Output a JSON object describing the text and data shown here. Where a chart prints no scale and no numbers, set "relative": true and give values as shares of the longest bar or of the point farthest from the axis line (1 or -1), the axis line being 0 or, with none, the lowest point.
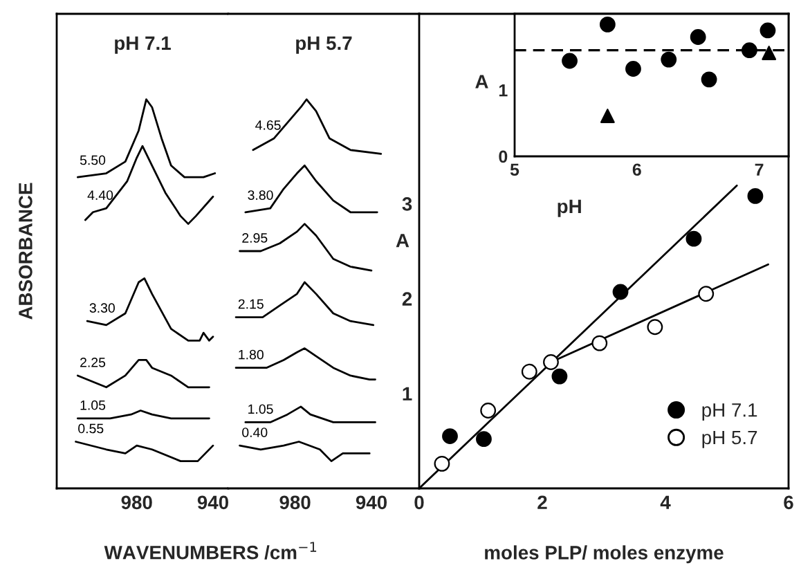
{
  "chart_data": [
    {
      "type": "line",
      "title": "pH 7.1",
      "xlabel": "WAVENUMBERS /cm$^{−1}$",
      "ylabel": "ABSORBANCE",
      "relative": true,
      "xlim": [
        1022,
        932
      ],
      "xticks": [
        980,
        940
      ],
      "tick_labels": "x",
      "series": [
        {
          "name": "5.50",
          "color": "#000000",
          "x": [
            1011,
            996,
            986,
            979,
            975,
            972,
            967,
            962,
            955,
            945,
            939
          ],
          "values": [
            0.8,
            0.81,
            0.84,
            0.92,
            1.0,
            0.98,
            0.9,
            0.83,
            0.8,
            0.8,
            0.81
          ]
        },
        {
          "name": "4.40",
          "color": "#000000",
          "x": [
            1007,
            1003,
            996,
            985,
            980,
            977,
            972,
            965,
            957,
            953,
            949,
            940
          ],
          "values": [
            0.69,
            0.71,
            0.72,
            0.79,
            0.85,
            0.88,
            0.83,
            0.76,
            0.7,
            0.68,
            0.7,
            0.75
          ]
        },
        {
          "name": "3.30",
          "color": "#000000",
          "x": [
            1006,
            996,
            986,
            979,
            976,
            972,
            962,
            953,
            947,
            945,
            942,
            940
          ],
          "values": [
            0.43,
            0.42,
            0.45,
            0.53,
            0.54,
            0.5,
            0.41,
            0.38,
            0.38,
            0.4,
            0.38,
            0.39
          ]
        },
        {
          "name": "2.25",
          "color": "#000000",
          "x": [
            1011,
            996,
            986,
            979,
            975,
            972,
            962,
            953,
            942
          ],
          "values": [
            0.29,
            0.26,
            0.29,
            0.33,
            0.33,
            0.31,
            0.29,
            0.26,
            0.26
          ]
        },
        {
          "name": "1.05",
          "color": "#000000",
          "x": [
            1011,
            994,
            983,
            978,
            972,
            962,
            948,
            942
          ],
          "values": [
            0.18,
            0.18,
            0.19,
            0.2,
            0.19,
            0.18,
            0.18,
            0.18
          ]
        },
        {
          "name": "0.55",
          "color": "#000000",
          "x": [
            1012,
            996,
            986,
            980,
            972,
            957,
            948,
            944,
            940
          ],
          "values": [
            0.12,
            0.1,
            0.09,
            0.11,
            0.1,
            0.07,
            0.07,
            0.09,
            0.11
          ]
        }
      ]
    },
    {
      "type": "line",
      "title": "pH 5.7",
      "relative": true,
      "xlim": [
        1015,
        915
      ],
      "xticks": [
        980,
        940
      ],
      "tick_labels": "x",
      "series": [
        {
          "name": "4.65",
          "color": "#000000",
          "x": [
            1002,
            991,
            984,
            977,
            974,
            969,
            962,
            951,
            935
          ],
          "values": [
            0.87,
            0.9,
            0.94,
            0.98,
            1.0,
            0.97,
            0.9,
            0.87,
            0.86
          ]
        },
        {
          "name": "3.80",
          "color": "#000000",
          "x": [
            1006,
            993,
            986,
            979,
            975,
            969,
            960,
            951,
            937
          ],
          "values": [
            0.71,
            0.72,
            0.77,
            0.81,
            0.83,
            0.79,
            0.74,
            0.71,
            0.71
          ]
        },
        {
          "name": "2.95",
          "color": "#000000",
          "x": [
            1009,
            998,
            988,
            979,
            975,
            969,
            960,
            951,
            940
          ],
          "values": [
            0.61,
            0.61,
            0.63,
            0.66,
            0.68,
            0.65,
            0.59,
            0.57,
            0.56
          ]
        },
        {
          "name": "2.15",
          "color": "#000000",
          "x": [
            1011,
            997,
            988,
            979,
            975,
            969,
            960,
            951,
            939
          ],
          "values": [
            0.44,
            0.44,
            0.47,
            0.5,
            0.53,
            0.5,
            0.45,
            0.43,
            0.42
          ]
        },
        {
          "name": "1.80",
          "color": "#000000",
          "x": [
            1011,
            995,
            986,
            979,
            975,
            969,
            960,
            951,
            941,
            938
          ],
          "values": [
            0.31,
            0.31,
            0.33,
            0.35,
            0.36,
            0.34,
            0.31,
            0.29,
            0.28,
            0.28
          ]
        },
        {
          "name": "1.05",
          "color": "#000000",
          "x": [
            1006,
            993,
            984,
            977,
            972,
            960,
            951,
            941,
            938
          ],
          "values": [
            0.17,
            0.17,
            0.19,
            0.21,
            0.19,
            0.17,
            0.17,
            0.17,
            0.17
          ]
        },
        {
          "name": "0.40",
          "color": "#000000",
          "x": [
            1009,
            998,
            986,
            978,
            967,
            961,
            955,
            941
          ],
          "values": [
            0.11,
            0.1,
            0.11,
            0.12,
            0.1,
            0.07,
            0.09,
            0.09
          ]
        }
      ]
    },
    {
      "type": "scatter",
      "xlabel": "moles PLP/ moles enzyme",
      "ylabel": "A",
      "xlim": [
        0,
        6
      ],
      "xticks": [
        0,
        2,
        4,
        6
      ],
      "ylim": [
        0,
        5
      ],
      "yticks": [
        1,
        2,
        3
      ],
      "legend": "bottom right",
      "series": [
        {
          "name": "pH 7.1",
          "color": "#000000",
          "marker": "circle",
          "x": [
            0.5,
            1.05,
            2.28,
            3.27,
            4.46,
            5.46
          ],
          "values": [
            0.55,
            0.52,
            1.18,
            2.07,
            2.63,
            3.08
          ]
        },
        {
          "name": "pH 5.7",
          "color": "#ffffff",
          "marker": "circle",
          "x": [
            0.37,
            1.12,
            1.79,
            2.14,
            2.93,
            3.83,
            4.66
          ],
          "values": [
            0.26,
            0.82,
            1.23,
            1.33,
            1.53,
            1.7,
            2.05
          ]
        },
        {
          "type": "line",
          "color": "#000000",
          "x": [
            0,
            5.16
          ],
          "values": [
            0,
            3.19
          ]
        },
        {
          "type": "line",
          "color": "#000000",
          "x": [
            2.14,
            5.67
          ],
          "values": [
            1.33,
            2.36
          ]
        }
      ]
    },
    {
      "type": "scatter",
      "xlabel": "pH",
      "ylabel": "A",
      "xlim": [
        5,
        7.24
      ],
      "xticks": [
        5,
        6,
        7
      ],
      "ylim": [
        0,
        2.15
      ],
      "yticks": [
        0,
        1
      ],
      "ref_lines": [
        {
          "axis": "y",
          "value": 1.6,
          "color": "#000000",
          "line_style": "dashed"
        }
      ],
      "series": [
        {
          "color": "#000000",
          "marker": "circle",
          "x": [
            5.45,
            5.76,
            5.97,
            6.26,
            6.5,
            6.59,
            6.92,
            7.07
          ],
          "values": [
            1.44,
            1.99,
            1.32,
            1.46,
            1.8,
            1.16,
            1.6,
            1.9
          ]
        },
        {
          "color": "#000000",
          "marker": "triangle",
          "x": [
            5.76,
            7.08
          ],
          "values": [
            0.61,
            1.56
          ]
        }
      ]
    }
  ]
}
